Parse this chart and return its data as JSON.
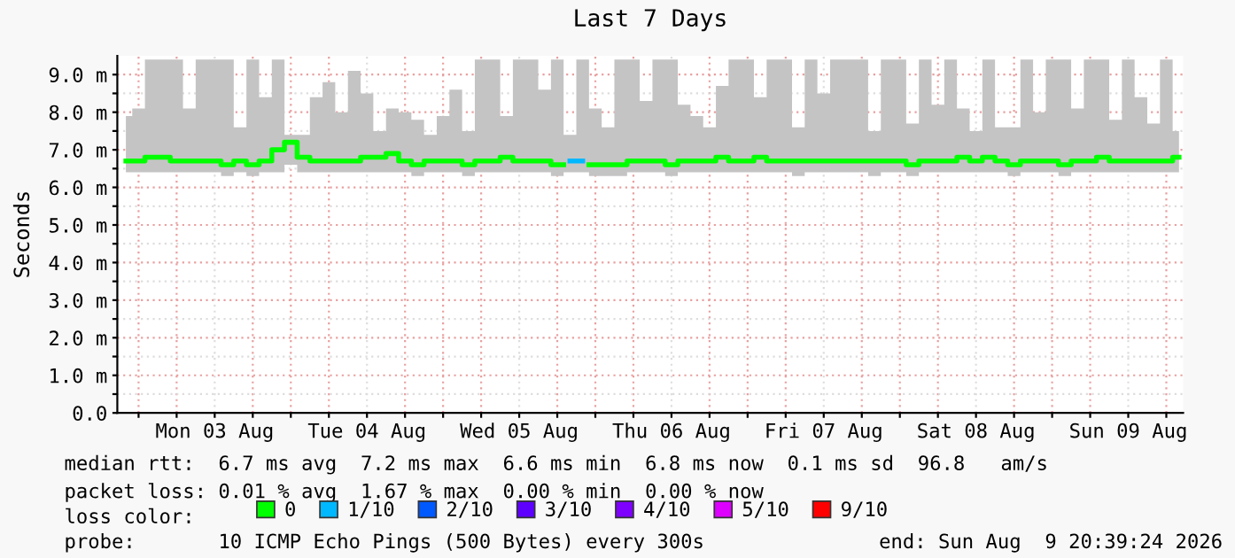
{
  "chart_data": {
    "type": "step",
    "title": "Last 7 Days",
    "ylabel": "Seconds",
    "x": [
      "2026-08-02T22:00",
      "2026-08-03T00:00",
      "2026-08-03T02:00",
      "2026-08-03T04:00",
      "2026-08-03T06:00",
      "2026-08-03T08:00",
      "2026-08-03T10:00",
      "2026-08-03T12:00",
      "2026-08-03T14:00",
      "2026-08-03T16:00",
      "2026-08-03T18:00",
      "2026-08-03T20:00",
      "2026-08-03T22:00",
      "2026-08-04T00:00",
      "2026-08-04T02:00",
      "2026-08-04T04:00",
      "2026-08-04T06:00",
      "2026-08-04T08:00",
      "2026-08-04T10:00",
      "2026-08-04T12:00",
      "2026-08-04T14:00",
      "2026-08-04T16:00",
      "2026-08-04T18:00",
      "2026-08-04T20:00",
      "2026-08-04T22:00",
      "2026-08-05T00:00",
      "2026-08-05T02:00",
      "2026-08-05T04:00",
      "2026-08-05T06:00",
      "2026-08-05T08:00",
      "2026-08-05T10:00",
      "2026-08-05T12:00",
      "2026-08-05T14:00",
      "2026-08-05T16:00",
      "2026-08-05T18:00",
      "2026-08-05T20:00",
      "2026-08-05T22:00",
      "2026-08-06T00:00",
      "2026-08-06T02:00",
      "2026-08-06T04:00",
      "2026-08-06T06:00",
      "2026-08-06T08:00",
      "2026-08-06T10:00",
      "2026-08-06T12:00",
      "2026-08-06T14:00",
      "2026-08-06T16:00",
      "2026-08-06T18:00",
      "2026-08-06T20:00",
      "2026-08-06T22:00",
      "2026-08-07T00:00",
      "2026-08-07T02:00",
      "2026-08-07T04:00",
      "2026-08-07T06:00",
      "2026-08-07T08:00",
      "2026-08-07T10:00",
      "2026-08-07T12:00",
      "2026-08-07T14:00",
      "2026-08-07T16:00",
      "2026-08-07T18:00",
      "2026-08-07T20:00",
      "2026-08-07T22:00",
      "2026-08-08T00:00",
      "2026-08-08T02:00",
      "2026-08-08T04:00",
      "2026-08-08T06:00",
      "2026-08-08T08:00",
      "2026-08-08T10:00",
      "2026-08-08T12:00",
      "2026-08-08T14:00",
      "2026-08-08T16:00",
      "2026-08-08T18:00",
      "2026-08-08T20:00",
      "2026-08-08T22:00",
      "2026-08-09T00:00",
      "2026-08-09T02:00",
      "2026-08-09T04:00",
      "2026-08-09T06:00",
      "2026-08-09T08:00",
      "2026-08-09T10:00",
      "2026-08-09T12:00",
      "2026-08-09T14:00",
      "2026-08-09T16:00",
      "2026-08-09T18:00",
      "2026-08-09T20:00"
    ],
    "series": [
      {
        "name": "0",
        "color": "#00ff00",
        "values": [
          6.7,
          6.7,
          6.8,
          6.8,
          6.7,
          6.7,
          6.7,
          6.7,
          6.6,
          6.7,
          6.6,
          6.7,
          7.0,
          7.2,
          6.8,
          6.7,
          6.7,
          6.7,
          6.7,
          6.8,
          6.8,
          6.9,
          6.7,
          6.6,
          6.7,
          6.7,
          6.7,
          6.6,
          6.7,
          6.7,
          6.8,
          6.7,
          6.7,
          6.7,
          6.6,
          null,
          null,
          6.6,
          6.6,
          6.6,
          6.7,
          6.7,
          6.7,
          6.6,
          6.7,
          6.7,
          6.7,
          6.8,
          6.7,
          6.7,
          6.8,
          6.7,
          6.7,
          6.7,
          6.7,
          6.7,
          6.7,
          6.7,
          6.7,
          6.7,
          6.7,
          6.7,
          6.6,
          6.7,
          6.7,
          6.7,
          6.8,
          6.7,
          6.8,
          6.7,
          6.6,
          6.7,
          6.7,
          6.7,
          6.6,
          6.7,
          6.7,
          6.8,
          6.7,
          6.7,
          6.7,
          6.7,
          6.7,
          6.8
        ],
        "lower": [
          6.4,
          6.4,
          6.4,
          6.4,
          6.4,
          6.4,
          6.4,
          6.4,
          6.3,
          6.4,
          6.3,
          6.4,
          6.4,
          6.6,
          6.4,
          6.4,
          6.4,
          6.4,
          6.4,
          6.4,
          6.4,
          6.4,
          6.4,
          6.3,
          6.4,
          6.4,
          6.4,
          6.3,
          6.4,
          6.4,
          6.4,
          6.4,
          6.4,
          6.4,
          6.3,
          6.4,
          6.4,
          6.3,
          6.3,
          6.3,
          6.4,
          6.4,
          6.4,
          6.3,
          6.4,
          6.4,
          6.4,
          6.4,
          6.4,
          6.4,
          6.4,
          6.4,
          6.4,
          6.3,
          6.4,
          6.4,
          6.4,
          6.4,
          6.4,
          6.3,
          6.4,
          6.4,
          6.3,
          6.4,
          6.4,
          6.4,
          6.4,
          6.4,
          6.4,
          6.4,
          6.3,
          6.4,
          6.4,
          6.4,
          6.3,
          6.4,
          6.4,
          6.4,
          6.4,
          6.4,
          6.4,
          6.4,
          6.4,
          6.4
        ],
        "upper": [
          7.9,
          8.1,
          9.4,
          9.4,
          9.4,
          8.1,
          9.4,
          9.4,
          9.4,
          7.6,
          9.4,
          8.4,
          9.4,
          7.4,
          7.4,
          8.4,
          8.8,
          8.0,
          9.1,
          8.5,
          7.5,
          8.1,
          8.0,
          7.8,
          7.4,
          7.9,
          8.6,
          7.5,
          9.4,
          9.4,
          7.9,
          9.4,
          9.4,
          8.6,
          9.4,
          7.4,
          9.4,
          8.1,
          7.6,
          9.4,
          9.4,
          8.3,
          9.4,
          9.4,
          8.2,
          7.9,
          7.6,
          8.7,
          9.4,
          9.4,
          8.4,
          9.4,
          9.4,
          7.6,
          9.4,
          8.5,
          9.4,
          9.4,
          9.4,
          7.5,
          9.4,
          9.4,
          7.7,
          9.4,
          8.2,
          9.4,
          8.1,
          7.5,
          9.4,
          7.6,
          7.6,
          9.4,
          8.0,
          9.4,
          9.4,
          8.1,
          9.4,
          9.4,
          7.8,
          9.4,
          8.4,
          7.7,
          9.4,
          7.5
        ]
      },
      {
        "name": "1/10",
        "color": "#00b8ff",
        "x": [
          "2026-08-05T20:00",
          "2026-08-05T22:00"
        ],
        "values": [
          6.7,
          6.7
        ]
      },
      {
        "name": "2/10",
        "color": "#0059ff",
        "values": [
          null,
          null,
          null,
          null,
          null,
          null,
          null,
          null,
          null,
          null,
          null,
          null,
          null,
          null,
          null,
          null,
          null,
          null,
          null,
          null,
          null,
          null,
          null,
          null,
          null,
          null,
          null,
          null,
          null,
          null,
          null,
          null,
          null,
          null,
          null,
          null,
          null,
          null,
          null,
          null,
          null,
          null,
          null,
          null,
          null,
          null,
          null,
          null,
          null,
          null,
          null,
          null,
          null,
          null,
          null,
          null,
          null,
          null,
          null,
          null,
          null,
          null,
          null,
          null,
          null,
          null,
          null,
          null,
          null,
          null,
          null,
          null,
          null,
          null,
          null,
          null,
          null,
          null,
          null,
          null,
          null,
          null,
          null,
          null
        ]
      },
      {
        "name": "3/10",
        "color": "#5e00ff",
        "values": [
          null,
          null,
          null,
          null,
          null,
          null,
          null,
          null,
          null,
          null,
          null,
          null,
          null,
          null,
          null,
          null,
          null,
          null,
          null,
          null,
          null,
          null,
          null,
          null,
          null,
          null,
          null,
          null,
          null,
          null,
          null,
          null,
          null,
          null,
          null,
          null,
          null,
          null,
          null,
          null,
          null,
          null,
          null,
          null,
          null,
          null,
          null,
          null,
          null,
          null,
          null,
          null,
          null,
          null,
          null,
          null,
          null,
          null,
          null,
          null,
          null,
          null,
          null,
          null,
          null,
          null,
          null,
          null,
          null,
          null,
          null,
          null,
          null,
          null,
          null,
          null,
          null,
          null,
          null,
          null,
          null,
          null,
          null,
          null
        ]
      },
      {
        "name": "4/10",
        "color": "#7e00ff",
        "values": [
          null,
          null,
          null,
          null,
          null,
          null,
          null,
          null,
          null,
          null,
          null,
          null,
          null,
          null,
          null,
          null,
          null,
          null,
          null,
          null,
          null,
          null,
          null,
          null,
          null,
          null,
          null,
          null,
          null,
          null,
          null,
          null,
          null,
          null,
          null,
          null,
          null,
          null,
          null,
          null,
          null,
          null,
          null,
          null,
          null,
          null,
          null,
          null,
          null,
          null,
          null,
          null,
          null,
          null,
          null,
          null,
          null,
          null,
          null,
          null,
          null,
          null,
          null,
          null,
          null,
          null,
          null,
          null,
          null,
          null,
          null,
          null,
          null,
          null,
          null,
          null,
          null,
          null,
          null,
          null,
          null,
          null,
          null,
          null
        ]
      },
      {
        "name": "5/10",
        "color": "#dd00ff",
        "values": [
          null,
          null,
          null,
          null,
          null,
          null,
          null,
          null,
          null,
          null,
          null,
          null,
          null,
          null,
          null,
          null,
          null,
          null,
          null,
          null,
          null,
          null,
          null,
          null,
          null,
          null,
          null,
          null,
          null,
          null,
          null,
          null,
          null,
          null,
          null,
          null,
          null,
          null,
          null,
          null,
          null,
          null,
          null,
          null,
          null,
          null,
          null,
          null,
          null,
          null,
          null,
          null,
          null,
          null,
          null,
          null,
          null,
          null,
          null,
          null,
          null,
          null,
          null,
          null,
          null,
          null,
          null,
          null,
          null,
          null,
          null,
          null,
          null,
          null,
          null,
          null,
          null,
          null,
          null,
          null,
          null,
          null,
          null,
          null
        ]
      },
      {
        "name": "9/10",
        "color": "#ff0000",
        "values": [
          null,
          null,
          null,
          null,
          null,
          null,
          null,
          null,
          null,
          null,
          null,
          null,
          null,
          null,
          null,
          null,
          null,
          null,
          null,
          null,
          null,
          null,
          null,
          null,
          null,
          null,
          null,
          null,
          null,
          null,
          null,
          null,
          null,
          null,
          null,
          null,
          null,
          null,
          null,
          null,
          null,
          null,
          null,
          null,
          null,
          null,
          null,
          null,
          null,
          null,
          null,
          null,
          null,
          null,
          null,
          null,
          null,
          null,
          null,
          null,
          null,
          null,
          null,
          null,
          null,
          null,
          null,
          null,
          null,
          null,
          null,
          null,
          null,
          null,
          null,
          null,
          null,
          null,
          null,
          null,
          null,
          null,
          null,
          null
        ]
      }
    ],
    "legend": "bottom",
    "legend_title": "loss color:",
    "grid": true,
    "xlim": [
      "2026-08-02T20:39",
      "2026-08-09T20:39"
    ],
    "xticks": [
      {
        "value": "2026-08-03T00:00",
        "label": null
      },
      {
        "value": "2026-08-03T06:00",
        "label": null
      },
      {
        "value": "2026-08-03T12:00",
        "label": "Mon 03 Aug"
      },
      {
        "value": "2026-08-03T18:00",
        "label": null
      },
      {
        "value": "2026-08-04T00:00",
        "label": null
      },
      {
        "value": "2026-08-04T06:00",
        "label": null
      },
      {
        "value": "2026-08-04T12:00",
        "label": "Tue 04 Aug"
      },
      {
        "value": "2026-08-04T18:00",
        "label": null
      },
      {
        "value": "2026-08-05T00:00",
        "label": null
      },
      {
        "value": "2026-08-05T06:00",
        "label": null
      },
      {
        "value": "2026-08-05T12:00",
        "label": "Wed 05 Aug"
      },
      {
        "value": "2026-08-05T18:00",
        "label": null
      },
      {
        "value": "2026-08-06T00:00",
        "label": null
      },
      {
        "value": "2026-08-06T06:00",
        "label": null
      },
      {
        "value": "2026-08-06T12:00",
        "label": "Thu 06 Aug"
      },
      {
        "value": "2026-08-06T18:00",
        "label": null
      },
      {
        "value": "2026-08-07T00:00",
        "label": null
      },
      {
        "value": "2026-08-07T06:00",
        "label": null
      },
      {
        "value": "2026-08-07T12:00",
        "label": "Fri 07 Aug"
      },
      {
        "value": "2026-08-07T18:00",
        "label": null
      },
      {
        "value": "2026-08-08T00:00",
        "label": null
      },
      {
        "value": "2026-08-08T06:00",
        "label": null
      },
      {
        "value": "2026-08-08T12:00",
        "label": "Sat 08 Aug"
      },
      {
        "value": "2026-08-08T18:00",
        "label": null
      },
      {
        "value": "2026-08-09T00:00",
        "label": null
      },
      {
        "value": "2026-08-09T06:00",
        "label": null
      },
      {
        "value": "2026-08-09T12:00",
        "label": "Sun 09 Aug"
      },
      {
        "value": "2026-08-09T18:00",
        "label": null
      }
    ],
    "ylim": [
      0,
      9.5
    ],
    "yticks": [
      {
        "value": 0,
        "label": "0.0"
      },
      {
        "value": 0.5,
        "label": null
      },
      {
        "value": 1,
        "label": "1.0 m"
      },
      {
        "value": 1.5,
        "label": null
      },
      {
        "value": 2,
        "label": "2.0 m"
      },
      {
        "value": 2.5,
        "label": null
      },
      {
        "value": 3,
        "label": "3.0 m"
      },
      {
        "value": 3.5,
        "label": null
      },
      {
        "value": 4,
        "label": "4.0 m"
      },
      {
        "value": 4.5,
        "label": null
      },
      {
        "value": 5,
        "label": "5.0 m"
      },
      {
        "value": 5.5,
        "label": null
      },
      {
        "value": 6,
        "label": "6.0 m"
      },
      {
        "value": 6.5,
        "label": null
      },
      {
        "value": 7,
        "label": "7.0 m"
      },
      {
        "value": 7.5,
        "label": null
      },
      {
        "value": 8,
        "label": "8.0 m"
      },
      {
        "value": 8.5,
        "label": null
      },
      {
        "value": 9,
        "label": "9.0 m"
      }
    ],
    "annotations": [
      "median rtt:  6.7 ms avg  7.2 ms max  6.6 ms min  6.8 ms now  0.1 ms sd  96.8   am/s",
      "packet loss: 0.01 % avg  1.67 % max  0.00 % min  0.00 % now",
      "probe:       10 ICMP Echo Pings (500 Bytes) every 300s",
      "end: Sun Aug  9 20:39:24 2026"
    ]
  }
}
